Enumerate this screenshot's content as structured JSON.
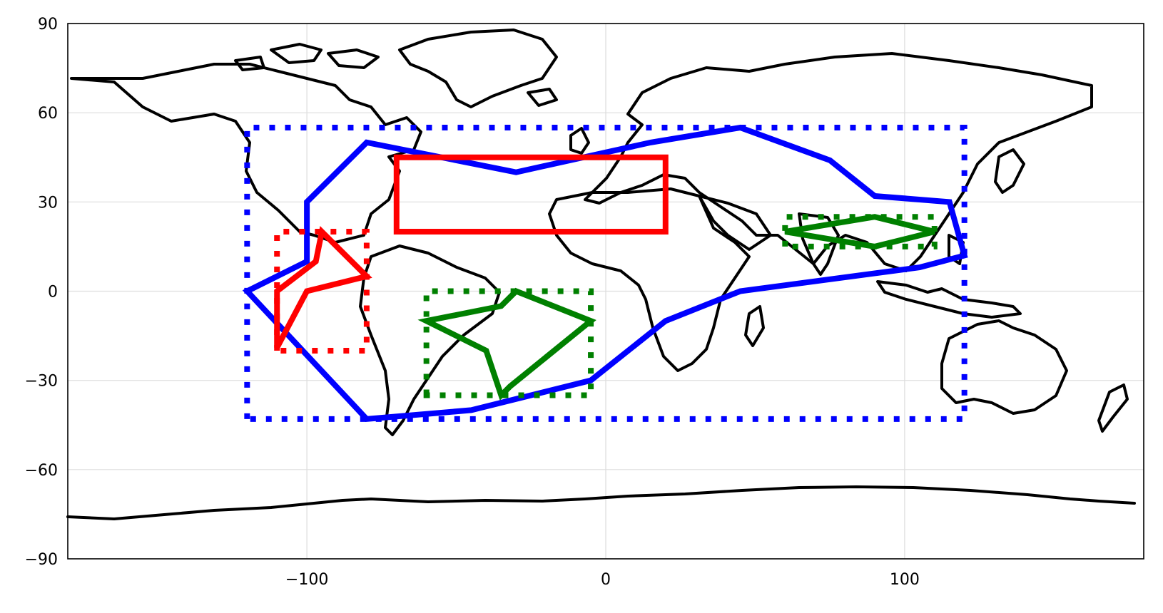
{
  "chart_data": {
    "type": "map",
    "xlim": [
      -180,
      180
    ],
    "ylim": [
      -90,
      90
    ],
    "grid": true,
    "x_ticks": [
      {
        "value": -100,
        "label": "−100"
      },
      {
        "value": 0,
        "label": "0"
      },
      {
        "value": 100,
        "label": "100"
      }
    ],
    "y_ticks": [
      {
        "value": 90,
        "label": "90"
      },
      {
        "value": 60,
        "label": "60"
      },
      {
        "value": 30,
        "label": "30"
      },
      {
        "value": 0,
        "label": "0"
      },
      {
        "value": -30,
        "label": "−30"
      },
      {
        "value": -60,
        "label": "−60"
      },
      {
        "value": -90,
        "label": "−90"
      }
    ],
    "regions": [
      {
        "id": "blue-bbox",
        "color": "#0000ff",
        "style": "dotted",
        "points": [
          [
            -120,
            -43
          ],
          [
            -120,
            55
          ],
          [
            120,
            55
          ],
          [
            120,
            -43
          ]
        ]
      },
      {
        "id": "blue-polygon",
        "color": "#0000ff",
        "style": "solid",
        "points": [
          [
            -120,
            0
          ],
          [
            -100,
            10
          ],
          [
            -100,
            30
          ],
          [
            -80,
            50
          ],
          [
            -30,
            40
          ],
          [
            15,
            50
          ],
          [
            45,
            55
          ],
          [
            75,
            44
          ],
          [
            90,
            32
          ],
          [
            115,
            30
          ],
          [
            120,
            12
          ],
          [
            105,
            8
          ],
          [
            45,
            0
          ],
          [
            20,
            -10
          ],
          [
            -5,
            -30
          ],
          [
            -45,
            -40
          ],
          [
            -80,
            -43
          ]
        ]
      },
      {
        "id": "red-rectangle",
        "color": "#ff0000",
        "style": "solid",
        "points": [
          [
            -70,
            20
          ],
          [
            -70,
            45
          ],
          [
            20,
            45
          ],
          [
            20,
            20
          ]
        ]
      },
      {
        "id": "red-bbox",
        "color": "#ff0000",
        "style": "dotted",
        "points": [
          [
            -110,
            -20
          ],
          [
            -110,
            20
          ],
          [
            -80,
            20
          ],
          [
            -80,
            -20
          ]
        ]
      },
      {
        "id": "red-polygon",
        "color": "#ff0000",
        "style": "solid",
        "points": [
          [
            -110,
            -19
          ],
          [
            -110,
            0
          ],
          [
            -97,
            10
          ],
          [
            -95,
            20
          ],
          [
            -80,
            5
          ],
          [
            -100,
            0
          ]
        ]
      },
      {
        "id": "green-bbox-south-america",
        "color": "#008000",
        "style": "dotted",
        "points": [
          [
            -60,
            -35
          ],
          [
            -60,
            0
          ],
          [
            -5,
            0
          ],
          [
            -5,
            -35
          ]
        ]
      },
      {
        "id": "green-polygon-south-america",
        "color": "#008000",
        "style": "solid",
        "points": [
          [
            -60,
            -10
          ],
          [
            -35,
            -5
          ],
          [
            -30,
            0
          ],
          [
            -5,
            -10
          ],
          [
            -32,
            -32
          ],
          [
            -35,
            -35
          ],
          [
            -40,
            -20
          ]
        ]
      },
      {
        "id": "green-bbox-asia",
        "color": "#008000",
        "style": "dotted",
        "points": [
          [
            60,
            15
          ],
          [
            60,
            25
          ],
          [
            110,
            25
          ],
          [
            110,
            15
          ]
        ]
      },
      {
        "id": "green-polygon-asia",
        "color": "#008000",
        "style": "solid",
        "points": [
          [
            60,
            20
          ],
          [
            90,
            25
          ],
          [
            110,
            20
          ],
          [
            90,
            15
          ]
        ]
      }
    ]
  }
}
